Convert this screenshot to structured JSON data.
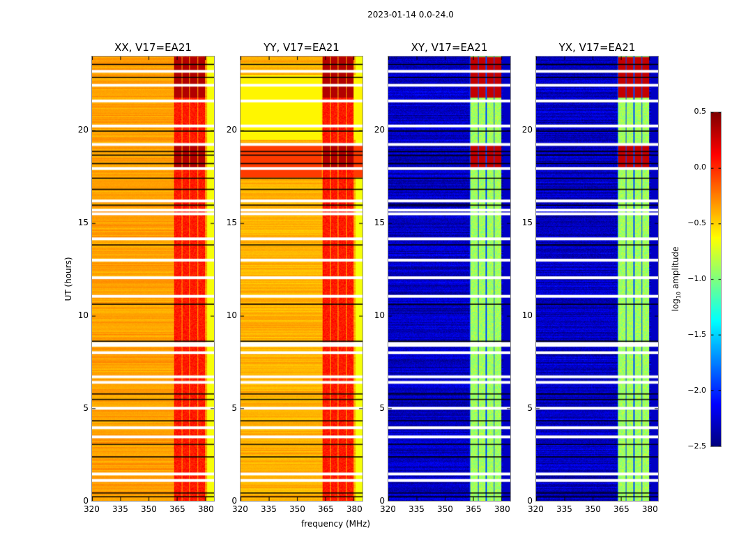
{
  "chart_data": {
    "type": "heatmap",
    "title": "2023-01-14 0.0-24.0",
    "xlabel": "frequency (MHz)",
    "ylabel": "UT (hours)",
    "xlim": [
      320,
      384.8
    ],
    "ylim": [
      0,
      24
    ],
    "xticks": [
      "320",
      "335",
      "350",
      "365",
      "380"
    ],
    "xtick_values": [
      320,
      335,
      350,
      365,
      380
    ],
    "yticks": [
      "0",
      "5",
      "10",
      "15",
      "20"
    ],
    "ytick_values": [
      0,
      5,
      10,
      15,
      20
    ],
    "colormap": "jet",
    "panels": [
      {
        "title": "XX, V17=EA21",
        "pol": "XX",
        "base_log_amp": -0.35
      },
      {
        "title": "YY, V17=EA21",
        "pol": "YY",
        "base_log_amp": -0.4
      },
      {
        "title": "XY, V17=EA21",
        "pol": "XY",
        "base_log_amp": -2.3
      },
      {
        "title": "YX, V17=EA21",
        "pol": "YX",
        "base_log_amp": -2.3
      }
    ],
    "bright_band_mhz": [
      363,
      380
    ],
    "flagged_hours": [
      23.2,
      22.45,
      21.6,
      20.25,
      19.25,
      17.95,
      16.2,
      15.7,
      15.5,
      14.15,
      13.0,
      12.05,
      11.05,
      8.5,
      8.4,
      8.0,
      6.7,
      6.4,
      5.0,
      3.95,
      3.45,
      1.45,
      1.1
    ],
    "colorbar": {
      "label": "log₁₀ amplitude",
      "range": [
        -2.5,
        0.5
      ],
      "ticks": [
        "0.5",
        "0.0",
        "−0.5",
        "−1.0",
        "−1.5",
        "−2.0",
        "−2.5"
      ],
      "tick_values": [
        0.5,
        0.0,
        -0.5,
        -1.0,
        -1.5,
        -2.0,
        -2.5
      ]
    }
  }
}
